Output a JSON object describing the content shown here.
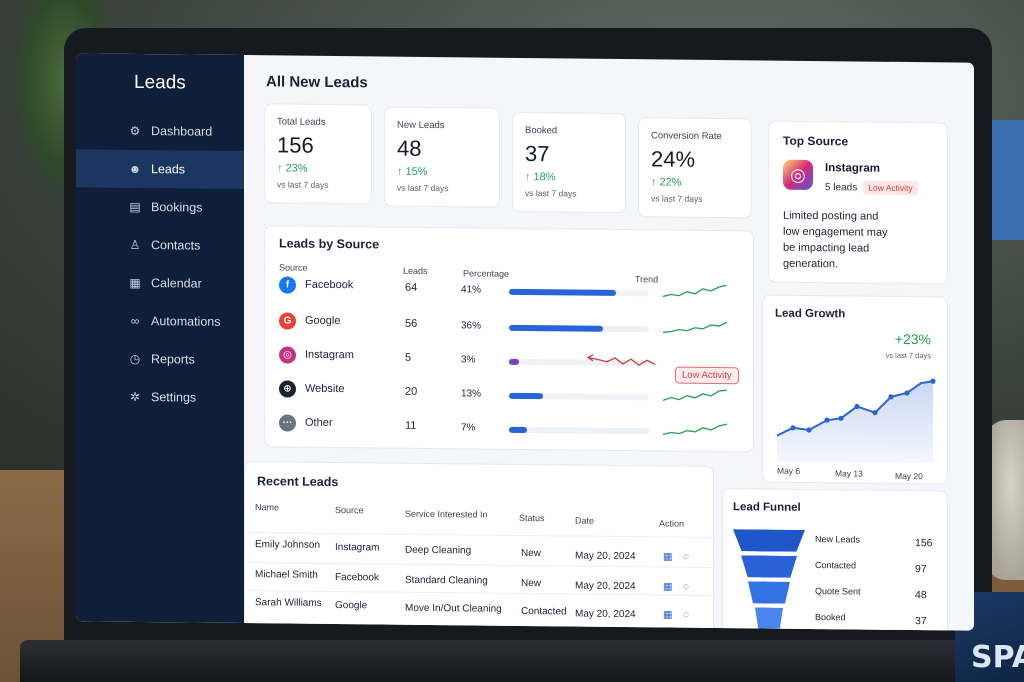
{
  "sidebar": {
    "brand": "Leads",
    "items": [
      {
        "label": "Dashboard",
        "icon": "gear-ring-icon"
      },
      {
        "label": "Leads",
        "icon": "user-icon"
      },
      {
        "label": "Bookings",
        "icon": "clipboard-icon"
      },
      {
        "label": "Contacts",
        "icon": "person-icon"
      },
      {
        "label": "Calendar",
        "icon": "calendar-icon"
      },
      {
        "label": "Automations",
        "icon": "link-icon"
      },
      {
        "label": "Reports",
        "icon": "clock-icon"
      },
      {
        "label": "Settings",
        "icon": "settings-icon"
      }
    ],
    "active_index": 1
  },
  "main": {
    "title": "All New Leads",
    "kpis": [
      {
        "label": "Total Leads",
        "value": "156",
        "delta": "↑ 23%",
        "sub": "vs last 7 days"
      },
      {
        "label": "New Leads",
        "value": "48",
        "delta": "↑ 15%",
        "sub": "vs last 7 days"
      },
      {
        "label": "Booked",
        "value": "37",
        "delta": "↑ 18%",
        "sub": "vs last 7 days"
      },
      {
        "label": "Conversion Rate",
        "value": "24%",
        "delta": "↑ 22%",
        "sub": "vs last 7 days"
      }
    ],
    "top_source": {
      "title": "Top Source",
      "name": "Instagram",
      "count": "5 leads",
      "badge": "Low Activity",
      "note": "Limited posting and low engagement may be impacting lead generation."
    },
    "leads_by_source": {
      "title": "Leads by Source",
      "headers": {
        "source": "Source",
        "leads": "Leads",
        "percentage": "Percentage",
        "trend": "Trend"
      },
      "rows": [
        {
          "source": "Facebook",
          "leads": "64",
          "pct": "41%",
          "fill": 0.41,
          "color": "#1877f2",
          "glyph": "f"
        },
        {
          "source": "Google",
          "leads": "56",
          "pct": "36%",
          "fill": 0.36,
          "color": "#ea4335",
          "glyph": "G"
        },
        {
          "source": "Instagram",
          "leads": "5",
          "pct": "3%",
          "fill": 0.03,
          "color": "#c13584",
          "glyph": "◎"
        },
        {
          "source": "Website",
          "leads": "20",
          "pct": "13%",
          "fill": 0.13,
          "color": "#1b2233",
          "glyph": "⊕"
        },
        {
          "source": "Other",
          "leads": "11",
          "pct": "7%",
          "fill": 0.07,
          "color": "#6b7280",
          "glyph": "···"
        }
      ],
      "instagram_badge": "Low Activity"
    },
    "lead_growth": {
      "title": "Lead Growth",
      "delta": "+23%",
      "sub": "vs last 7 days",
      "x_labels": [
        "May 6",
        "May 13",
        "May 20"
      ]
    },
    "recent_leads": {
      "title": "Recent Leads",
      "headers": {
        "name": "Name",
        "source": "Source",
        "service": "Service Interested In",
        "status": "Status",
        "date": "Date",
        "action": "Action"
      },
      "rows": [
        {
          "name": "Emily Johnson",
          "source": "Instagram",
          "service": "Deep Cleaning",
          "status": "New",
          "date": "May 20, 2024"
        },
        {
          "name": "Michael Smith",
          "source": "Facebook",
          "service": "Standard Cleaning",
          "status": "New",
          "date": "May 20, 2024"
        },
        {
          "name": "Sarah Williams",
          "source": "Google",
          "service": "Move In/Out Cleaning",
          "status": "Contacted",
          "date": "May 20, 2024"
        }
      ]
    },
    "lead_funnel": {
      "title": "Lead Funnel",
      "stages": [
        {
          "label": "New Leads",
          "value": "156"
        },
        {
          "label": "Contacted",
          "value": "97"
        },
        {
          "label": "Quote Sent",
          "value": "48"
        },
        {
          "label": "Booked",
          "value": "37"
        }
      ]
    }
  },
  "decor": {
    "box_text": "SPA"
  }
}
